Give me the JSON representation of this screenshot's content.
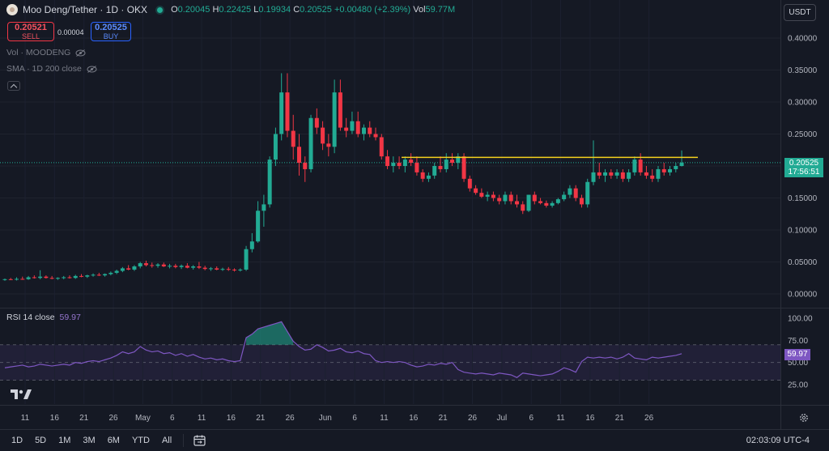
{
  "header": {
    "title": "Moo Deng/Tether · 1D · OKX",
    "ohlc": [
      {
        "key": "O",
        "value": "0.20045"
      },
      {
        "key": "H",
        "value": "0.22425"
      },
      {
        "key": "L",
        "value": "0.19934"
      },
      {
        "key": "C",
        "value": "0.20525"
      }
    ],
    "change": "+0.00480 (+2.39%)",
    "volume_key": "Vol",
    "volume_value": "59.77M"
  },
  "trade": {
    "sell_price": "0.20521",
    "sell_label": "SELL",
    "spread": "0.00004",
    "buy_price": "0.20525",
    "buy_label": "BUY"
  },
  "indicators": {
    "volume": "Vol · MOODENG",
    "sma": "SMA · 1D 200 close",
    "rsi_label": "RSI 14 close",
    "rsi_value": "59.97"
  },
  "currency": "USDT",
  "current_price": {
    "price": "0.20525",
    "countdown": "17:56:51"
  },
  "price_axis": [
    "0.40000",
    "0.35000",
    "0.30000",
    "0.25000",
    "0.20000",
    "0.15000",
    "0.10000",
    "0.05000",
    "0.00000"
  ],
  "rsi_axis": [
    "100.00",
    "75.00",
    "50.00",
    "25.00"
  ],
  "time_axis": [
    "11",
    "16",
    "21",
    "26",
    "May",
    "6",
    "11",
    "16",
    "21",
    "26",
    "Jun",
    "6",
    "11",
    "16",
    "21",
    "26",
    "Jul",
    "6",
    "11",
    "16",
    "21",
    "26"
  ],
  "timeframes": [
    "1D",
    "5D",
    "1M",
    "3M",
    "6M",
    "YTD",
    "All"
  ],
  "clock": "02:03:09 UTC-4",
  "colors": {
    "up": "#22ab94",
    "down": "#f23645",
    "resistance": "#f5d01d",
    "rsi": "#7e57c2"
  },
  "icons": [
    "eye-off-icon",
    "calendar-range-icon",
    "gear-icon",
    "tradingview-logo",
    "chevron-up-icon"
  ],
  "chart_data": {
    "type": "candlestick",
    "y_range": [
      -0.015,
      0.43
    ],
    "rsi_range": [
      0,
      100
    ],
    "resistance_level": 0.2135,
    "candles": [
      {
        "o": 0.0222,
        "h": 0.024,
        "l": 0.0205,
        "c": 0.023
      },
      {
        "o": 0.023,
        "h": 0.025,
        "l": 0.0215,
        "c": 0.0225
      },
      {
        "o": 0.0225,
        "h": 0.026,
        "l": 0.021,
        "c": 0.0235
      },
      {
        "o": 0.0235,
        "h": 0.027,
        "l": 0.022,
        "c": 0.023
      },
      {
        "o": 0.023,
        "h": 0.028,
        "l": 0.022,
        "c": 0.026
      },
      {
        "o": 0.026,
        "h": 0.029,
        "l": 0.024,
        "c": 0.025
      },
      {
        "o": 0.025,
        "h": 0.037,
        "l": 0.023,
        "c": 0.027
      },
      {
        "o": 0.027,
        "h": 0.029,
        "l": 0.024,
        "c": 0.025
      },
      {
        "o": 0.025,
        "h": 0.028,
        "l": 0.023,
        "c": 0.024
      },
      {
        "o": 0.024,
        "h": 0.026,
        "l": 0.022,
        "c": 0.025
      },
      {
        "o": 0.025,
        "h": 0.028,
        "l": 0.023,
        "c": 0.026
      },
      {
        "o": 0.026,
        "h": 0.029,
        "l": 0.024,
        "c": 0.025
      },
      {
        "o": 0.025,
        "h": 0.03,
        "l": 0.0235,
        "c": 0.028
      },
      {
        "o": 0.028,
        "h": 0.031,
        "l": 0.026,
        "c": 0.027
      },
      {
        "o": 0.027,
        "h": 0.03,
        "l": 0.025,
        "c": 0.029
      },
      {
        "o": 0.029,
        "h": 0.032,
        "l": 0.027,
        "c": 0.03
      },
      {
        "o": 0.03,
        "h": 0.033,
        "l": 0.028,
        "c": 0.029
      },
      {
        "o": 0.029,
        "h": 0.032,
        "l": 0.027,
        "c": 0.031
      },
      {
        "o": 0.031,
        "h": 0.035,
        "l": 0.029,
        "c": 0.033
      },
      {
        "o": 0.033,
        "h": 0.038,
        "l": 0.031,
        "c": 0.036
      },
      {
        "o": 0.036,
        "h": 0.042,
        "l": 0.034,
        "c": 0.04
      },
      {
        "o": 0.04,
        "h": 0.045,
        "l": 0.037,
        "c": 0.038
      },
      {
        "o": 0.038,
        "h": 0.045,
        "l": 0.036,
        "c": 0.043
      },
      {
        "o": 0.043,
        "h": 0.05,
        "l": 0.04,
        "c": 0.048
      },
      {
        "o": 0.048,
        "h": 0.052,
        "l": 0.043,
        "c": 0.045
      },
      {
        "o": 0.045,
        "h": 0.049,
        "l": 0.041,
        "c": 0.044
      },
      {
        "o": 0.044,
        "h": 0.048,
        "l": 0.041,
        "c": 0.046
      },
      {
        "o": 0.046,
        "h": 0.049,
        "l": 0.042,
        "c": 0.043
      },
      {
        "o": 0.043,
        "h": 0.047,
        "l": 0.04,
        "c": 0.044
      },
      {
        "o": 0.044,
        "h": 0.047,
        "l": 0.04,
        "c": 0.042
      },
      {
        "o": 0.042,
        "h": 0.046,
        "l": 0.039,
        "c": 0.044
      },
      {
        "o": 0.044,
        "h": 0.048,
        "l": 0.04,
        "c": 0.041
      },
      {
        "o": 0.041,
        "h": 0.045,
        "l": 0.038,
        "c": 0.043
      },
      {
        "o": 0.043,
        "h": 0.05,
        "l": 0.039,
        "c": 0.041
      },
      {
        "o": 0.041,
        "h": 0.044,
        "l": 0.037,
        "c": 0.039
      },
      {
        "o": 0.039,
        "h": 0.042,
        "l": 0.036,
        "c": 0.04
      },
      {
        "o": 0.04,
        "h": 0.043,
        "l": 0.037,
        "c": 0.038
      },
      {
        "o": 0.038,
        "h": 0.041,
        "l": 0.036,
        "c": 0.039
      },
      {
        "o": 0.039,
        "h": 0.042,
        "l": 0.036,
        "c": 0.038
      },
      {
        "o": 0.038,
        "h": 0.04,
        "l": 0.035,
        "c": 0.037
      },
      {
        "o": 0.037,
        "h": 0.04,
        "l": 0.035,
        "c": 0.038
      },
      {
        "o": 0.038,
        "h": 0.075,
        "l": 0.036,
        "c": 0.07
      },
      {
        "o": 0.07,
        "h": 0.095,
        "l": 0.065,
        "c": 0.082
      },
      {
        "o": 0.082,
        "h": 0.145,
        "l": 0.08,
        "c": 0.13
      },
      {
        "o": 0.13,
        "h": 0.155,
        "l": 0.105,
        "c": 0.14
      },
      {
        "o": 0.14,
        "h": 0.215,
        "l": 0.135,
        "c": 0.21
      },
      {
        "o": 0.21,
        "h": 0.26,
        "l": 0.2,
        "c": 0.25
      },
      {
        "o": 0.25,
        "h": 0.345,
        "l": 0.24,
        "c": 0.315
      },
      {
        "o": 0.315,
        "h": 0.345,
        "l": 0.245,
        "c": 0.255
      },
      {
        "o": 0.255,
        "h": 0.28,
        "l": 0.21,
        "c": 0.23
      },
      {
        "o": 0.23,
        "h": 0.25,
        "l": 0.185,
        "c": 0.205
      },
      {
        "o": 0.205,
        "h": 0.215,
        "l": 0.175,
        "c": 0.195
      },
      {
        "o": 0.195,
        "h": 0.28,
        "l": 0.19,
        "c": 0.275
      },
      {
        "o": 0.275,
        "h": 0.29,
        "l": 0.25,
        "c": 0.26
      },
      {
        "o": 0.26,
        "h": 0.27,
        "l": 0.225,
        "c": 0.235
      },
      {
        "o": 0.235,
        "h": 0.25,
        "l": 0.215,
        "c": 0.23
      },
      {
        "o": 0.23,
        "h": 0.335,
        "l": 0.22,
        "c": 0.315
      },
      {
        "o": 0.315,
        "h": 0.335,
        "l": 0.255,
        "c": 0.26
      },
      {
        "o": 0.26,
        "h": 0.275,
        "l": 0.245,
        "c": 0.255
      },
      {
        "o": 0.255,
        "h": 0.285,
        "l": 0.25,
        "c": 0.27
      },
      {
        "o": 0.27,
        "h": 0.285,
        "l": 0.245,
        "c": 0.25
      },
      {
        "o": 0.25,
        "h": 0.265,
        "l": 0.24,
        "c": 0.26
      },
      {
        "o": 0.26,
        "h": 0.27,
        "l": 0.245,
        "c": 0.25
      },
      {
        "o": 0.25,
        "h": 0.26,
        "l": 0.24,
        "c": 0.245
      },
      {
        "o": 0.245,
        "h": 0.25,
        "l": 0.21,
        "c": 0.215
      },
      {
        "o": 0.215,
        "h": 0.225,
        "l": 0.195,
        "c": 0.2
      },
      {
        "o": 0.2,
        "h": 0.215,
        "l": 0.19,
        "c": 0.205
      },
      {
        "o": 0.205,
        "h": 0.215,
        "l": 0.195,
        "c": 0.2
      },
      {
        "o": 0.2,
        "h": 0.215,
        "l": 0.19,
        "c": 0.21
      },
      {
        "o": 0.21,
        "h": 0.22,
        "l": 0.2,
        "c": 0.205
      },
      {
        "o": 0.205,
        "h": 0.215,
        "l": 0.185,
        "c": 0.19
      },
      {
        "o": 0.19,
        "h": 0.195,
        "l": 0.175,
        "c": 0.18
      },
      {
        "o": 0.18,
        "h": 0.19,
        "l": 0.175,
        "c": 0.185
      },
      {
        "o": 0.185,
        "h": 0.205,
        "l": 0.18,
        "c": 0.2
      },
      {
        "o": 0.2,
        "h": 0.215,
        "l": 0.19,
        "c": 0.195
      },
      {
        "o": 0.195,
        "h": 0.22,
        "l": 0.19,
        "c": 0.21
      },
      {
        "o": 0.21,
        "h": 0.22,
        "l": 0.2,
        "c": 0.205
      },
      {
        "o": 0.205,
        "h": 0.22,
        "l": 0.195,
        "c": 0.215
      },
      {
        "o": 0.215,
        "h": 0.22,
        "l": 0.175,
        "c": 0.18
      },
      {
        "o": 0.18,
        "h": 0.185,
        "l": 0.16,
        "c": 0.165
      },
      {
        "o": 0.165,
        "h": 0.17,
        "l": 0.155,
        "c": 0.158
      },
      {
        "o": 0.158,
        "h": 0.165,
        "l": 0.15,
        "c": 0.152
      },
      {
        "o": 0.152,
        "h": 0.16,
        "l": 0.145,
        "c": 0.155
      },
      {
        "o": 0.155,
        "h": 0.16,
        "l": 0.145,
        "c": 0.15
      },
      {
        "o": 0.15,
        "h": 0.155,
        "l": 0.14,
        "c": 0.145
      },
      {
        "o": 0.145,
        "h": 0.16,
        "l": 0.14,
        "c": 0.155
      },
      {
        "o": 0.155,
        "h": 0.16,
        "l": 0.14,
        "c": 0.145
      },
      {
        "o": 0.145,
        "h": 0.155,
        "l": 0.135,
        "c": 0.14
      },
      {
        "o": 0.14,
        "h": 0.145,
        "l": 0.125,
        "c": 0.13
      },
      {
        "o": 0.13,
        "h": 0.155,
        "l": 0.128,
        "c": 0.155
      },
      {
        "o": 0.155,
        "h": 0.16,
        "l": 0.14,
        "c": 0.145
      },
      {
        "o": 0.145,
        "h": 0.15,
        "l": 0.14,
        "c": 0.142
      },
      {
        "o": 0.142,
        "h": 0.146,
        "l": 0.135,
        "c": 0.138
      },
      {
        "o": 0.138,
        "h": 0.145,
        "l": 0.135,
        "c": 0.142
      },
      {
        "o": 0.142,
        "h": 0.15,
        "l": 0.14,
        "c": 0.148
      },
      {
        "o": 0.148,
        "h": 0.16,
        "l": 0.145,
        "c": 0.155
      },
      {
        "o": 0.155,
        "h": 0.17,
        "l": 0.15,
        "c": 0.165
      },
      {
        "o": 0.165,
        "h": 0.17,
        "l": 0.145,
        "c": 0.15
      },
      {
        "o": 0.15,
        "h": 0.155,
        "l": 0.135,
        "c": 0.14
      },
      {
        "o": 0.14,
        "h": 0.18,
        "l": 0.135,
        "c": 0.175
      },
      {
        "o": 0.175,
        "h": 0.24,
        "l": 0.17,
        "c": 0.19
      },
      {
        "o": 0.19,
        "h": 0.205,
        "l": 0.18,
        "c": 0.185
      },
      {
        "o": 0.185,
        "h": 0.195,
        "l": 0.175,
        "c": 0.19
      },
      {
        "o": 0.19,
        "h": 0.195,
        "l": 0.18,
        "c": 0.185
      },
      {
        "o": 0.185,
        "h": 0.195,
        "l": 0.18,
        "c": 0.19
      },
      {
        "o": 0.19,
        "h": 0.195,
        "l": 0.175,
        "c": 0.18
      },
      {
        "o": 0.18,
        "h": 0.195,
        "l": 0.175,
        "c": 0.19
      },
      {
        "o": 0.19,
        "h": 0.215,
        "l": 0.185,
        "c": 0.21
      },
      {
        "o": 0.21,
        "h": 0.22,
        "l": 0.185,
        "c": 0.19
      },
      {
        "o": 0.19,
        "h": 0.2,
        "l": 0.18,
        "c": 0.185
      },
      {
        "o": 0.185,
        "h": 0.195,
        "l": 0.175,
        "c": 0.18
      },
      {
        "o": 0.18,
        "h": 0.2,
        "l": 0.175,
        "c": 0.195
      },
      {
        "o": 0.195,
        "h": 0.205,
        "l": 0.185,
        "c": 0.19
      },
      {
        "o": 0.19,
        "h": 0.2,
        "l": 0.185,
        "c": 0.195
      },
      {
        "o": 0.195,
        "h": 0.205,
        "l": 0.19,
        "c": 0.2
      },
      {
        "o": 0.2,
        "h": 0.2243,
        "l": 0.1993,
        "c": 0.2053
      }
    ],
    "rsi": [
      44,
      45,
      46,
      47,
      45,
      46,
      48,
      47,
      46,
      47,
      48,
      47,
      50,
      49,
      51,
      52,
      51,
      53,
      55,
      58,
      62,
      60,
      62,
      68,
      64,
      62,
      63,
      60,
      61,
      58,
      60,
      57,
      59,
      56,
      54,
      55,
      53,
      54,
      52,
      51,
      52,
      78,
      82,
      88,
      90,
      92,
      94,
      96,
      85,
      74,
      68,
      64,
      65,
      70,
      67,
      63,
      64,
      66,
      62,
      61,
      63,
      60,
      59,
      52,
      50,
      51,
      50,
      51,
      50,
      47,
      45,
      46,
      48,
      47,
      49,
      48,
      50,
      42,
      39,
      38,
      37,
      38,
      37,
      36,
      38,
      37,
      36,
      33,
      38,
      37,
      36,
      35,
      36,
      37,
      40,
      44,
      42,
      39,
      51,
      56,
      55,
      56,
      55,
      56,
      54,
      56,
      60,
      55,
      54,
      53,
      56,
      55,
      56,
      57,
      58,
      59.97
    ],
    "time_ticks": [
      {
        "label": "11",
        "index": 0
      },
      {
        "label": "16",
        "index": 5
      },
      {
        "label": "21",
        "index": 10
      },
      {
        "label": "26",
        "index": 15
      },
      {
        "label": "May",
        "index": 20
      },
      {
        "label": "6",
        "index": 25
      },
      {
        "label": "11",
        "index": 30
      },
      {
        "label": "16",
        "index": 35
      },
      {
        "label": "21",
        "index": 40
      },
      {
        "label": "26",
        "index": 45
      },
      {
        "label": "Jun",
        "index": 51
      },
      {
        "label": "6",
        "index": 56
      },
      {
        "label": "11",
        "index": 61
      },
      {
        "label": "16",
        "index": 66
      },
      {
        "label": "21",
        "index": 71
      },
      {
        "label": "26",
        "index": 76
      },
      {
        "label": "Jul",
        "index": 81
      },
      {
        "label": "6",
        "index": 86
      },
      {
        "label": "11",
        "index": 91
      },
      {
        "label": "16",
        "index": 96
      },
      {
        "label": "21",
        "index": 101
      },
      {
        "label": "26",
        "index": 106
      }
    ]
  }
}
